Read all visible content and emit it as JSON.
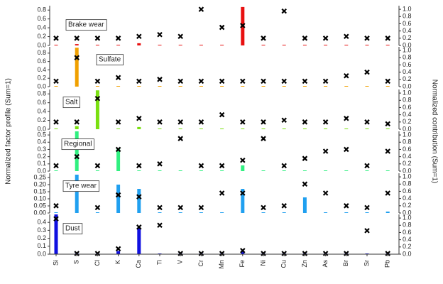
{
  "ylabel": "Normalized factor profile (Sum=1)",
  "y2label": "Normalized contribution (Sum=1)",
  "chart_data": [
    {
      "type": "bar",
      "title": "Brake wear",
      "ylim": [
        0,
        0.9
      ],
      "y2lim": [
        0,
        1.1
      ],
      "yticks": [
        {
          "value": 0,
          "label": "0.0"
        },
        0.2,
        0.4,
        0.6,
        0.8
      ],
      "y2ticks": [
        {
          "value": 0,
          "label": "0.0"
        },
        0.2,
        0.4,
        0.6,
        0.8,
        {
          "value": 1,
          "label": "1.0"
        }
      ],
      "series": [
        {
          "color": "#e81010",
          "values": [
            0.005,
            0.03,
            0.005,
            0.005,
            0.05,
            0.005,
            0.005,
            0.005,
            0.005,
            0.87,
            0.005,
            0.01,
            0.005,
            0.005,
            0.005,
            0.005,
            0.005
          ]
        },
        {
          "axis": "y2",
          "marker": "x",
          "values": [
            0.2,
            0.2,
            0.2,
            0.2,
            0.25,
            0.3,
            0.25,
            1.0,
            0.5,
            0.55,
            0.2,
            0.95,
            0.2,
            0.2,
            0.25,
            0.2,
            0.2
          ]
        }
      ]
    },
    {
      "type": "bar",
      "title": "Sulfate",
      "ylim": [
        0,
        0.95
      ],
      "y2lim": [
        0,
        1.1
      ],
      "yticks": [
        {
          "value": 0,
          "label": "0.0"
        },
        0.2,
        0.4,
        0.6,
        0.8
      ],
      "y2ticks": [
        {
          "value": 0,
          "label": "0.0"
        },
        0.2,
        0.4,
        0.6,
        0.8,
        {
          "value": 1,
          "label": "1.0"
        }
      ],
      "series": [
        {
          "color": "#f0a000",
          "values": [
            0.005,
            0.93,
            0.005,
            0.005,
            0.005,
            0.005,
            0.005,
            0.005,
            0.005,
            0.005,
            0.005,
            0.005,
            0.005,
            0.005,
            0.005,
            0.005,
            0.005
          ]
        },
        {
          "axis": "y2",
          "marker": "x",
          "values": [
            0.15,
            0.8,
            0.15,
            0.25,
            0.15,
            0.2,
            0.15,
            0.15,
            0.15,
            0.15,
            0.15,
            0.15,
            0.15,
            0.15,
            0.3,
            0.4,
            0.15
          ]
        }
      ]
    },
    {
      "type": "bar",
      "title": "Salt",
      "ylim": [
        0,
        0.9
      ],
      "y2lim": [
        0,
        1.1
      ],
      "yticks": [
        {
          "value": 0,
          "label": "0.0"
        },
        0.2,
        0.4,
        0.6,
        0.8
      ],
      "y2ticks": [
        {
          "value": 0,
          "label": "0.0"
        },
        0.2,
        0.4,
        0.6,
        0.8,
        {
          "value": 1,
          "label": "1.0"
        }
      ],
      "series": [
        {
          "color": "#7ae010",
          "values": [
            0.005,
            0.07,
            0.88,
            0.005,
            0.05,
            0.005,
            0.005,
            0.005,
            0.005,
            0.005,
            0.005,
            0.005,
            0.005,
            0.005,
            0.005,
            0.005,
            0.005
          ]
        },
        {
          "axis": "y2",
          "marker": "x",
          "values": [
            0.2,
            0.2,
            0.85,
            0.2,
            0.3,
            0.2,
            0.2,
            0.2,
            0.4,
            0.2,
            0.2,
            0.25,
            0.2,
            0.2,
            0.3,
            0.2,
            0.15
          ]
        }
      ]
    },
    {
      "type": "bar",
      "title": "Regional",
      "ylim": [
        0,
        0.55
      ],
      "y2lim": [
        0,
        1.1
      ],
      "yticks": [
        {
          "value": 0,
          "label": "0.0"
        },
        0.1,
        0.2,
        0.3,
        0.4,
        0.5
      ],
      "y2ticks": [
        {
          "value": 0,
          "label": "0.0"
        },
        0.2,
        0.4,
        0.6,
        0.8,
        {
          "value": 1,
          "label": "1.0"
        }
      ],
      "series": [
        {
          "color": "#30f080",
          "values": [
            0.005,
            0.55,
            0.01,
            0.32,
            0.01,
            0.005,
            0.005,
            0.005,
            0.005,
            0.08,
            0.005,
            0.005,
            0.005,
            0.005,
            0.01,
            0.005,
            0.005
          ]
        },
        {
          "axis": "y2",
          "marker": "x",
          "values": [
            0.15,
            0.4,
            0.15,
            0.6,
            0.15,
            0.2,
            0.9,
            0.15,
            0.15,
            0.3,
            0.9,
            0.15,
            0.35,
            0.55,
            0.6,
            0.15,
            0.55
          ]
        }
      ]
    },
    {
      "type": "bar",
      "title": "Tyre wear",
      "ylim": [
        0,
        0.28
      ],
      "y2lim": [
        0,
        1.1
      ],
      "yticks": [
        {
          "value": 0,
          "label": "0.00"
        },
        0.05,
        {
          "value": 0.1,
          "label": "0.10"
        },
        0.15,
        {
          "value": 0.2,
          "label": "0.20"
        },
        0.25
      ],
      "y2ticks": [
        {
          "value": 0,
          "label": "0.0"
        },
        0.2,
        0.4,
        0.6,
        0.8,
        {
          "value": 1,
          "label": "1.0"
        }
      ],
      "series": [
        {
          "color": "#20a0f0",
          "values": [
            0.002,
            0.27,
            0.002,
            0.2,
            0.17,
            0.002,
            0.002,
            0.002,
            0.002,
            0.17,
            0.002,
            0.002,
            0.11,
            0.002,
            0.002,
            0.002,
            0.01
          ]
        },
        {
          "axis": "y2",
          "marker": "x",
          "values": [
            0.2,
            0.7,
            0.15,
            0.5,
            0.45,
            0.15,
            0.15,
            0.15,
            0.55,
            0.55,
            0.15,
            0.2,
            0.8,
            0.55,
            0.2,
            0.15,
            0.55
          ]
        }
      ]
    },
    {
      "type": "bar",
      "title": "Dust",
      "ylim": [
        0,
        0.5
      ],
      "y2lim": [
        0,
        1.1
      ],
      "yticks": [
        {
          "value": 0,
          "label": "0.0"
        },
        0.1,
        0.2,
        0.3,
        0.4
      ],
      "y2ticks": [
        {
          "value": 0,
          "label": "0.0"
        },
        0.2,
        0.4,
        0.6,
        0.8,
        {
          "value": 1,
          "label": "1.0"
        }
      ],
      "categories": [
        "Si",
        "S",
        "Cl",
        "K",
        "Ca",
        "Ti",
        "V",
        "Cr",
        "Mn",
        "Fe",
        "Ni",
        "Cu",
        "Zn",
        "As",
        "Br",
        "Sr",
        "Pb"
      ],
      "series": [
        {
          "color": "#1010e0",
          "values": [
            0.5,
            0.01,
            0.003,
            0.04,
            0.33,
            0.005,
            0.002,
            0.002,
            0.002,
            0.04,
            0.002,
            0.002,
            0.002,
            0.002,
            0.002,
            0.003,
            0.002
          ]
        },
        {
          "axis": "y2",
          "marker": "x",
          "values": [
            0.98,
            0.02,
            0.02,
            0.15,
            0.75,
            0.8,
            0.02,
            0.02,
            0.02,
            0.1,
            0.02,
            0.02,
            0.02,
            0.02,
            0.02,
            0.65,
            0.02
          ]
        }
      ]
    }
  ]
}
